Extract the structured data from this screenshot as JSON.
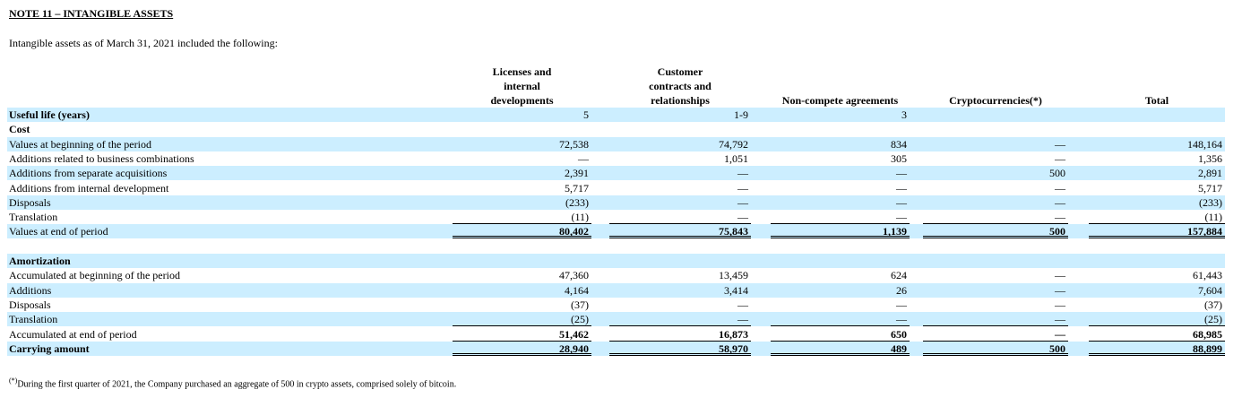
{
  "header": {
    "title": "NOTE 11 – INTANGIBLE ASSETS",
    "intro": "Intangible assets as of March 31, 2021 included the following:"
  },
  "table": {
    "columns": [
      "Licenses and internal developments",
      "Customer contracts and relationships",
      "Non-compete agreements",
      "Cryptocurrencies(*)",
      "Total"
    ],
    "rows": [
      {
        "label": "Useful life (years)",
        "cells": [
          "5",
          "1-9",
          "3",
          null,
          null
        ]
      },
      {
        "label": "Cost",
        "cells": [
          null,
          null,
          null,
          null,
          null
        ]
      },
      {
        "label": "Values at beginning of the period",
        "cells": [
          "72,538",
          "74,792",
          "834",
          "—",
          "148,164"
        ]
      },
      {
        "label": "Additions related to business combinations",
        "cells": [
          "—",
          "1,051",
          "305",
          "—",
          "1,356"
        ]
      },
      {
        "label": "Additions from separate acquisitions",
        "cells": [
          "2,391",
          "—",
          "—",
          "500",
          "2,891"
        ]
      },
      {
        "label": "Additions from internal development",
        "cells": [
          "5,717",
          "—",
          "—",
          "—",
          "5,717"
        ]
      },
      {
        "label": "Disposals",
        "cells": [
          "(233)",
          "—",
          "—",
          "—",
          "(233)"
        ]
      },
      {
        "label": "Translation",
        "cells": [
          "(11)",
          "—",
          "—",
          "—",
          "(11)"
        ]
      },
      {
        "label": "Values at end of period",
        "cells": [
          "80,402",
          "75,843",
          "1,139",
          "500",
          "157,884"
        ]
      },
      {
        "label": "Amortization",
        "cells": [
          null,
          null,
          null,
          null,
          null
        ]
      },
      {
        "label": "Accumulated at beginning of the period",
        "cells": [
          "47,360",
          "13,459",
          "624",
          "—",
          "61,443"
        ]
      },
      {
        "label": "Additions",
        "cells": [
          "4,164",
          "3,414",
          "26",
          "—",
          "7,604"
        ]
      },
      {
        "label": "Disposals",
        "cells": [
          "(37)",
          "—",
          "—",
          "—",
          "(37)"
        ]
      },
      {
        "label": "Translation",
        "cells": [
          "(25)",
          "—",
          "—",
          "—",
          "(25)"
        ]
      },
      {
        "label": "Accumulated at end of period",
        "cells": [
          "51,462",
          "16,873",
          "650",
          "—",
          "68,985"
        ]
      },
      {
        "label": "Carrying amount",
        "cells": [
          "28,940",
          "58,970",
          "489",
          "500",
          "88,899"
        ]
      }
    ]
  },
  "footnote": {
    "marker": "(*)",
    "text": "During the first quarter of 2021, the Company purchased an aggregate of 500 in crypto assets, comprised solely of bitcoin."
  }
}
